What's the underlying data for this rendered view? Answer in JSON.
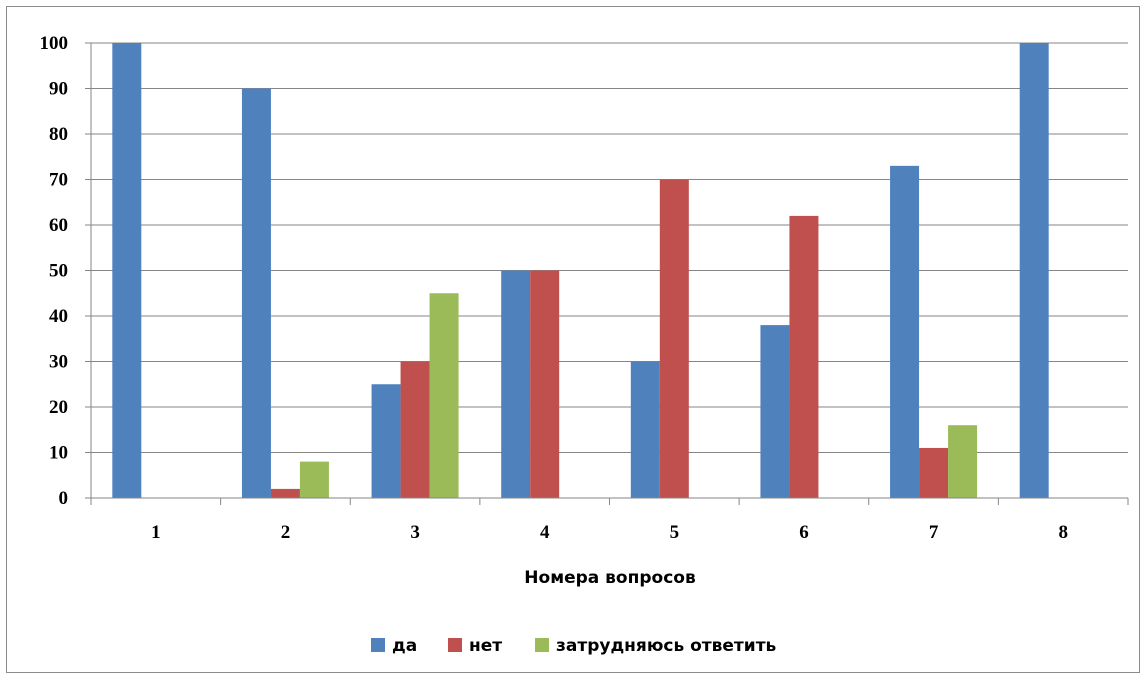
{
  "chart_data": {
    "type": "bar",
    "categories": [
      "1",
      "2",
      "3",
      "4",
      "5",
      "6",
      "7",
      "8"
    ],
    "series": [
      {
        "name": "да",
        "color": "#4f81bd",
        "values": [
          100,
          90,
          25,
          50,
          30,
          38,
          73,
          100
        ]
      },
      {
        "name": "нет",
        "color": "#c0504d",
        "values": [
          0,
          2,
          30,
          50,
          70,
          62,
          11,
          0
        ]
      },
      {
        "name": "затрудняюсь ответить",
        "color": "#9bbb59",
        "values": [
          0,
          8,
          45,
          0,
          0,
          0,
          16,
          0
        ]
      }
    ],
    "title": "",
    "xlabel": "Номера вопросов",
    "ylabel": "",
    "ylim": [
      0,
      100
    ],
    "yticks": [
      0,
      10,
      20,
      30,
      40,
      50,
      60,
      70,
      80,
      90,
      100
    ],
    "grid": true,
    "legend_position": "bottom"
  }
}
